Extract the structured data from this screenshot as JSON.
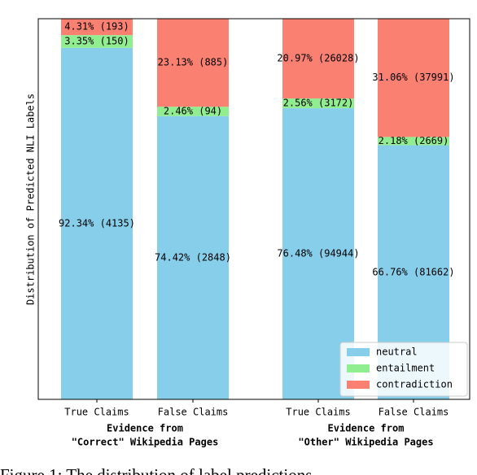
{
  "chart_data": {
    "type": "stacked_bar",
    "ylabel": "Distribution of Predicted NLI Labels",
    "categories": [
      "True Claims",
      "False Claims",
      "True Claims",
      "False Claims"
    ],
    "groups": [
      {
        "lines": [
          "Evidence from",
          "\"Correct\" Wikipedia Pages"
        ]
      },
      {
        "lines": [
          "Evidence from",
          "\"Other\" Wikipedia Pages"
        ]
      }
    ],
    "ylim": [
      0,
      100
    ],
    "legend": "lower right",
    "series": [
      {
        "name": "neutral",
        "color": "#87ceeb",
        "values": [
          92.34,
          74.42,
          76.48,
          66.76
        ],
        "value_labels": [
          "92.34% (4135)",
          "74.42% (2848)",
          "76.48% (94944)",
          "66.76% (81662)"
        ]
      },
      {
        "name": "entailment",
        "color": "#90ee90",
        "values": [
          3.35,
          2.46,
          2.56,
          2.18
        ],
        "value_labels": [
          "3.35% (150)",
          "2.46% (94)",
          "2.56% (3172)",
          "2.18% (2669)"
        ]
      },
      {
        "name": "contradiction",
        "color": "#fa8072",
        "values": [
          4.31,
          23.13,
          20.97,
          31.06
        ],
        "value_labels": [
          "4.31% (193)",
          "23.13% (885)",
          "20.97% (26028)",
          "31.06% (37991)"
        ]
      }
    ]
  },
  "caption": "Figure 1: The distribution of label predictions"
}
